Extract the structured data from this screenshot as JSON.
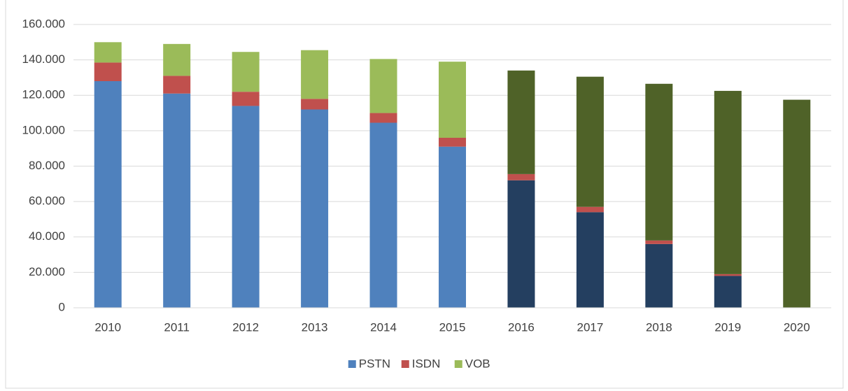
{
  "chart_data": {
    "type": "stacked_bar",
    "categories": [
      "2010",
      "2011",
      "2012",
      "2013",
      "2014",
      "2015",
      "2016",
      "2017",
      "2018",
      "2019",
      "2020"
    ],
    "series": [
      {
        "name": "PSTN",
        "color": "#4f81bd",
        "colors": [
          "#4f81bd",
          "#4f81bd",
          "#4f81bd",
          "#4f81bd",
          "#4f81bd",
          "#4f81bd",
          "#243f60",
          "#243f60",
          "#243f60",
          "#243f60",
          "#243f60"
        ],
        "values": [
          128000,
          121000,
          114000,
          112000,
          104500,
          91000,
          72000,
          54000,
          36000,
          18000,
          0
        ]
      },
      {
        "name": "ISDN",
        "color": "#c0504d",
        "colors": [
          "#c0504d",
          "#c0504d",
          "#c0504d",
          "#c0504d",
          "#c0504d",
          "#c0504d",
          "#c0504d",
          "#c0504d",
          "#c0504d",
          "#c0504d",
          "#c0504d"
        ],
        "values": [
          10500,
          10000,
          8000,
          6000,
          5500,
          5000,
          3500,
          3000,
          2000,
          1000,
          0
        ]
      },
      {
        "name": "VOB",
        "color": "#9bbb59",
        "colors": [
          "#9bbb59",
          "#9bbb59",
          "#9bbb59",
          "#9bbb59",
          "#9bbb59",
          "#9bbb59",
          "#4f6228",
          "#4f6228",
          "#4f6228",
          "#4f6228",
          "#4f6228"
        ],
        "values": [
          11500,
          18000,
          22500,
          27500,
          30500,
          43000,
          58500,
          73500,
          88500,
          103500,
          117500
        ]
      }
    ],
    "ylim": [
      0,
      160000
    ],
    "yticks": [
      0,
      {
        "value": 20000,
        "label": "20.000"
      },
      {
        "value": 40000,
        "label": "40.000"
      },
      {
        "value": 60000,
        "label": "60.000"
      },
      {
        "value": 80000,
        "label": "80.000"
      },
      {
        "value": 100000,
        "label": "100.000"
      },
      {
        "value": 120000,
        "label": "120.000"
      },
      {
        "value": 140000,
        "label": "140.000"
      },
      {
        "value": 160000,
        "label": "160.000"
      }
    ],
    "grid": true,
    "legend": "bottom"
  }
}
